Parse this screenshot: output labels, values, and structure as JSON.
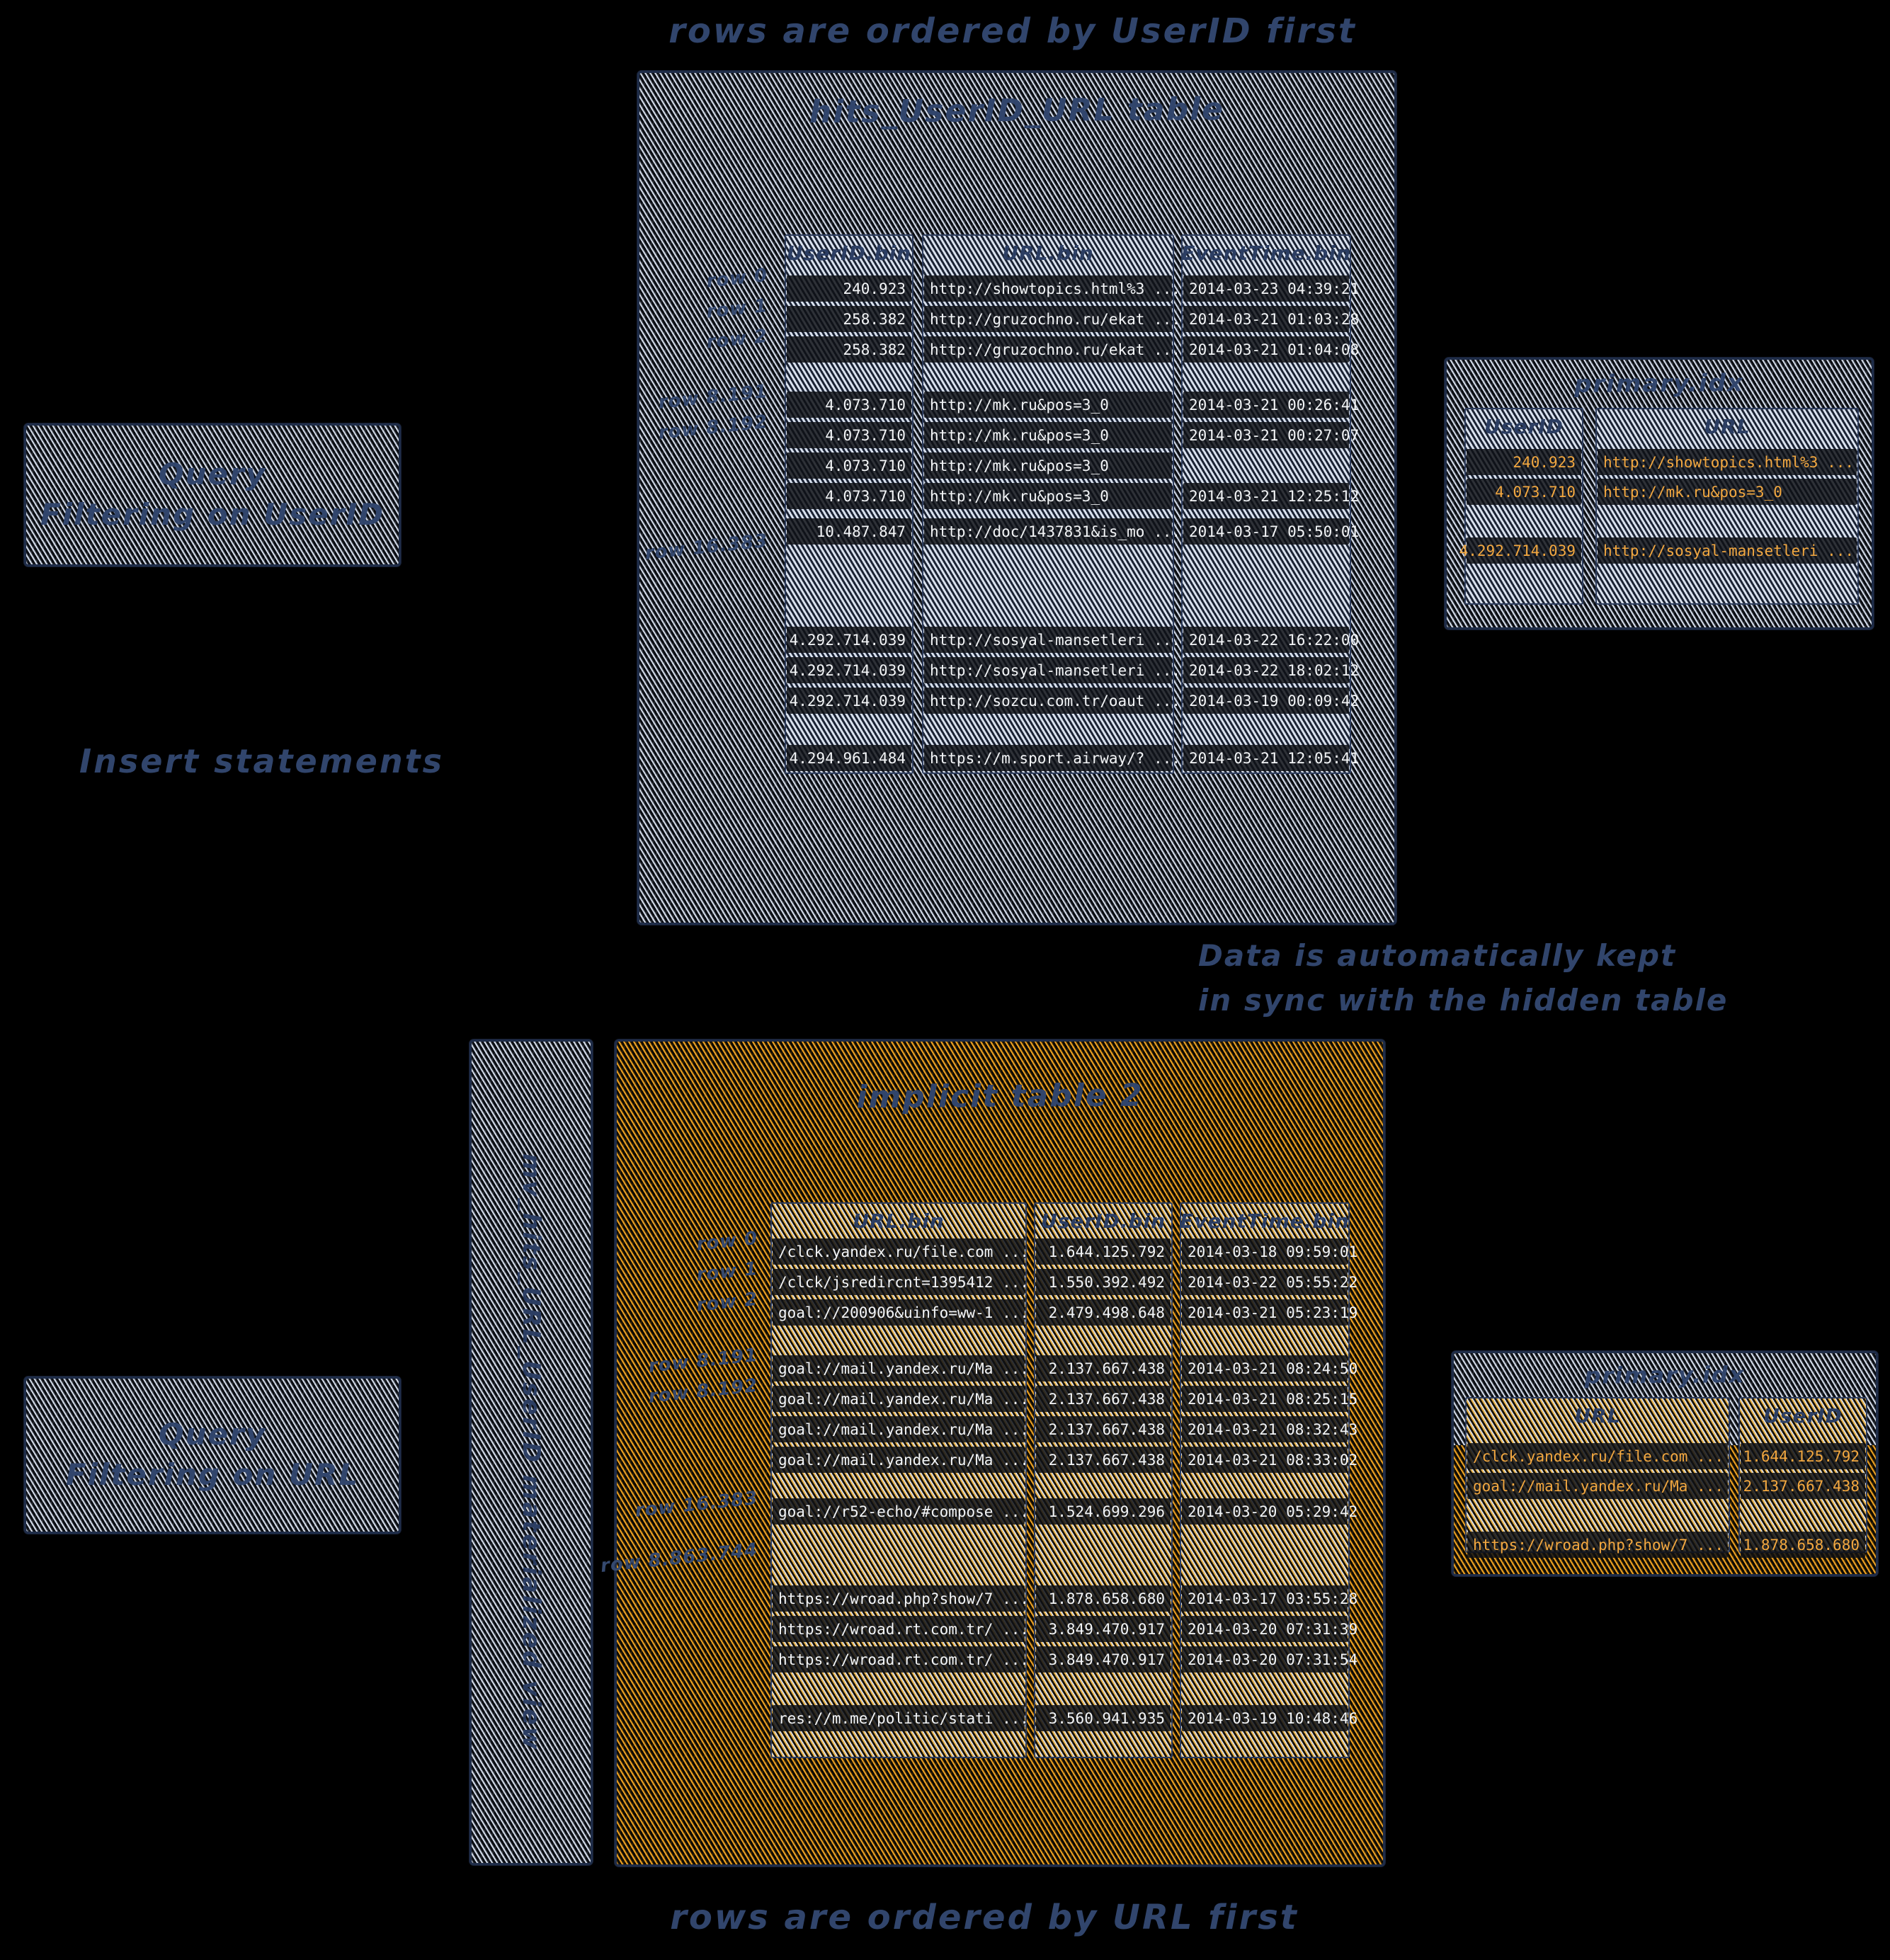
{
  "annotations": {
    "top": "rows are ordered by UserID first",
    "bottom": "rows are ordered by URL first",
    "insert": "Insert statements",
    "sync_line1": "Data is automatically kept",
    "sync_line2": "in sync with the hidden table"
  },
  "query_boxes": {
    "userid": {
      "line1": "Query",
      "line2": "Filtering on UserID"
    },
    "url": {
      "line1": "Query",
      "line2": "Filtering on URL"
    }
  },
  "mv_label": "mv_hits_URL_UserID materialized view",
  "colors": {
    "navy_text": "#31456c",
    "orange_text": "#f3a840",
    "gray_hatch": "#dbe3f1",
    "orange_hatch": "#f6a723",
    "background": "#000000"
  },
  "tables": {
    "main_top": {
      "title": "hits_UserID_URL table",
      "columns": [
        "UserID.bin",
        "URL.bin",
        "EventTime.bin"
      ],
      "groups": [
        [
          {
            "cells": [
              "240.923",
              "http://showtopics.html%3 ...",
              "2014-03-23 04:39:21"
            ],
            "mark": "row 0"
          },
          {
            "cells": [
              "258.382",
              "http://gruzochno.ru/ekat ...",
              "2014-03-21 01:03:28"
            ],
            "mark": "row 1"
          },
          {
            "cells": [
              "258.382",
              "http://gruzochno.ru/ekat ...",
              "2014-03-21 01:04:08"
            ],
            "mark": "row 2"
          }
        ],
        [
          {
            "cells": [
              "4.073.710",
              "http://mk.ru&pos=3_0",
              "2014-03-21 00:26:41"
            ],
            "mark": "row 8.191"
          },
          {
            "cells": [
              "4.073.710",
              "http://mk.ru&pos=3_0",
              "2014-03-21 00:27:07"
            ],
            "mark": "row 8.192"
          },
          {
            "cells": [
              "4.073.710",
              "http://mk.ru&pos=3_0",
              ""
            ]
          },
          {
            "cells": [
              "4.073.710",
              "http://mk.ru&pos=3_0",
              "2014-03-21 12:25:12"
            ]
          }
        ],
        [
          {
            "cells": [
              "10.487.847",
              "http://doc/1437831&is_mo ...",
              "2014-03-17 05:50:01"
            ]
          }
        ],
        [
          {
            "cells": [
              "4.292.714.039",
              "http://sosyal-mansetleri ...",
              "2014-03-22 16:22:00"
            ]
          },
          {
            "cells": [
              "4.292.714.039",
              "http://sosyal-mansetleri ...",
              "2014-03-22 18:02:12"
            ]
          },
          {
            "cells": [
              "4.292.714.039",
              "http://sozcu.com.tr/oaut ...",
              "2014-03-19 00:09:42"
            ]
          }
        ],
        [
          {
            "cells": [
              "4.294.961.484",
              "https://m.sport.airway/? ...",
              "2014-03-21 12:05:41"
            ]
          }
        ]
      ],
      "float_labels": [
        "row 16.383"
      ]
    },
    "idx_top": {
      "title": "primary.idx",
      "columns": [
        "UserID",
        "URL"
      ],
      "groups": [
        [
          {
            "cells": [
              "240.923",
              "http://showtopics.html%3 ..."
            ]
          },
          {
            "cells": [
              "4.073.710",
              "http://mk.ru&pos=3_0"
            ]
          }
        ],
        [
          {
            "cells": [
              "4.292.714.039",
              "http://sosyal-mansetleri ..."
            ]
          }
        ]
      ],
      "float_labels": []
    },
    "main_bottom": {
      "title": "implicit table 2",
      "columns": [
        "URL.bin",
        "UserID.bin",
        "EventTime.bin"
      ],
      "groups": [
        [
          {
            "cells": [
              "/clck.yandex.ru/file.com ...",
              "1.644.125.792",
              "2014-03-18 09:59:01"
            ],
            "mark": "row 0"
          },
          {
            "cells": [
              "/clck/jsredircnt=1395412 ...",
              "1.550.392.492",
              "2014-03-22 05:55:22"
            ],
            "mark": "row 1"
          },
          {
            "cells": [
              "goal://200906&uinfo=ww-1 ...",
              "2.479.498.648",
              "2014-03-21 05:23:19"
            ],
            "mark": "row 2"
          }
        ],
        [
          {
            "cells": [
              "goal://mail.yandex.ru/Ma ...",
              "2.137.667.438",
              "2014-03-21 08:24:50"
            ],
            "mark": "row 8.191"
          },
          {
            "cells": [
              "goal://mail.yandex.ru/Ma ...",
              "2.137.667.438",
              "2014-03-21 08:25:15"
            ],
            "mark": "row 8.192"
          },
          {
            "cells": [
              "goal://mail.yandex.ru/Ma ...",
              "2.137.667.438",
              "2014-03-21 08:32:43"
            ]
          },
          {
            "cells": [
              "goal://mail.yandex.ru/Ma ...",
              "2.137.667.438",
              "2014-03-21 08:33:02"
            ]
          }
        ],
        [
          {
            "cells": [
              "goal://r52-echo/#compose ...",
              "1.524.699.296",
              "2014-03-20 05:29:42"
            ],
            "mark": "row 16.383"
          }
        ],
        [
          {
            "cells": [
              "https://wroad.php?show/7 ...",
              "1.878.658.680",
              "2014-03-17 03:55:28"
            ]
          },
          {
            "cells": [
              "https://wroad.rt.com.tr/ ...",
              "3.849.470.917",
              "2014-03-20 07:31:39"
            ]
          },
          {
            "cells": [
              "https://wroad.rt.com.tr/ ...",
              "3.849.470.917",
              "2014-03-20 07:31:54"
            ]
          }
        ],
        [
          {
            "cells": [
              "res://m.me/politic/stati ...",
              "3.560.941.935",
              "2014-03-19 10:48:46"
            ]
          }
        ]
      ],
      "float_labels": [
        "row 8.863.744"
      ]
    },
    "idx_bottom": {
      "title": "primary.idx",
      "columns": [
        "URL",
        "UserID"
      ],
      "groups": [
        [
          {
            "cells": [
              "/clck.yandex.ru/file.com ...",
              "1.644.125.792"
            ]
          },
          {
            "cells": [
              "goal://mail.yandex.ru/Ma ...",
              "2.137.667.438"
            ]
          }
        ],
        [
          {
            "cells": [
              "https://wroad.php?show/7 ...",
              "1.878.658.680"
            ]
          }
        ]
      ],
      "float_labels": []
    }
  }
}
